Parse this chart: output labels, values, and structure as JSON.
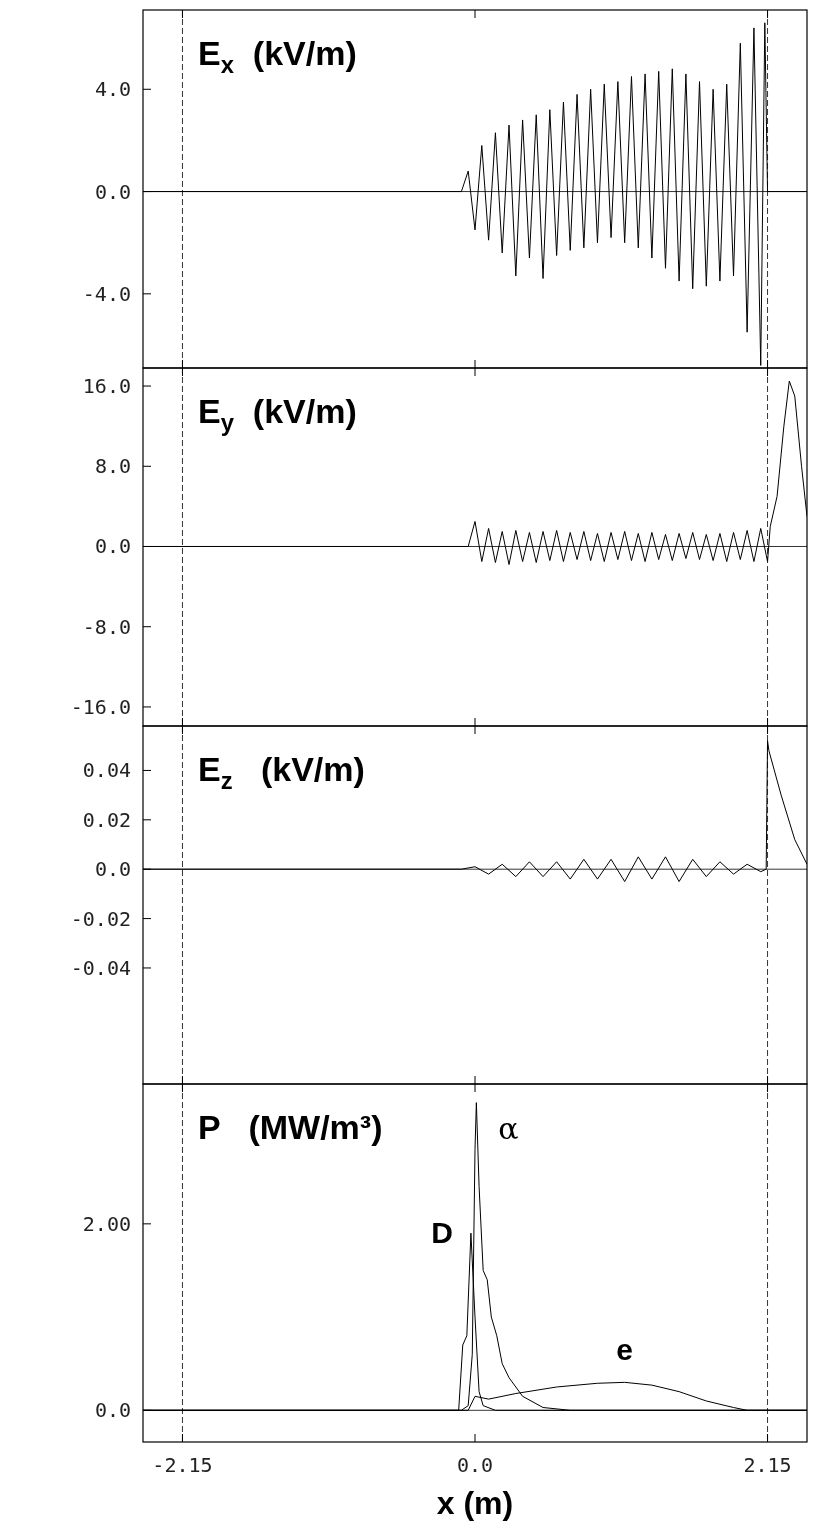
{
  "chart_data": [
    {
      "type": "line",
      "title": "E$_{x}$ (kV/m)",
      "xlim": [
        -2.44,
        2.44
      ],
      "xticks": [
        {
          "value": -2.15,
          "label": null
        },
        {
          "value": 0,
          "label": null
        },
        {
          "value": 2.15,
          "label": null
        }
      ],
      "ylim": [
        -6.9,
        7.1
      ],
      "yticks": [
        {
          "value": -4,
          "label": "-4.0"
        },
        {
          "value": 0,
          "label": "0.0"
        },
        {
          "value": 4,
          "label": "4.0"
        }
      ],
      "tick_labels": "y",
      "ref_lines": [
        {
          "axis": "x",
          "value": -2.15,
          "line_style": "dashed"
        },
        {
          "axis": "x",
          "value": 2.15,
          "line_style": "dashed"
        },
        {
          "axis": "y",
          "value": 0
        }
      ],
      "series": [
        {
          "color": "#000000",
          "x": [
            -2.44,
            -0.1,
            -0.05,
            0,
            0.05,
            0.1,
            0.15,
            0.2,
            0.25,
            0.3,
            0.35,
            0.4,
            0.45,
            0.5,
            0.55,
            0.6,
            0.65,
            0.7,
            0.75,
            0.8,
            0.85,
            0.9,
            0.95,
            1.0,
            1.05,
            1.1,
            1.15,
            1.2,
            1.25,
            1.3,
            1.35,
            1.4,
            1.45,
            1.5,
            1.55,
            1.6,
            1.65,
            1.7,
            1.75,
            1.8,
            1.85,
            1.9,
            1.95,
            2.0,
            2.05,
            2.1,
            2.13,
            2.15,
            2.44
          ],
          "values": [
            0,
            0,
            0.8,
            -1.5,
            1.8,
            -1.9,
            2.3,
            -2.4,
            2.6,
            -3.3,
            2.8,
            -2.6,
            3.0,
            -3.4,
            3.2,
            -2.5,
            3.5,
            -2.3,
            3.8,
            -2.2,
            4.0,
            -2.0,
            4.2,
            -1.8,
            4.3,
            -2.0,
            4.5,
            -2.2,
            4.6,
            -2.6,
            4.7,
            -3.0,
            4.8,
            -3.5,
            4.6,
            -3.8,
            4.3,
            -3.7,
            4.0,
            -3.5,
            4.2,
            -3.3,
            5.8,
            -5.5,
            6.4,
            -6.8,
            6.6,
            0,
            0
          ]
        }
      ]
    },
    {
      "type": "line",
      "title": "E$_{y}$ (kV/m)",
      "xlim": [
        -2.44,
        2.44
      ],
      "xticks": [
        {
          "value": -2.15,
          "label": null
        },
        {
          "value": 0,
          "label": null
        },
        {
          "value": 2.15,
          "label": null
        }
      ],
      "ylim": [
        -17.9,
        17.8
      ],
      "yticks": [
        {
          "value": -16,
          "label": "-16.0"
        },
        {
          "value": -8,
          "label": "-8.0"
        },
        {
          "value": 0,
          "label": "0.0"
        },
        {
          "value": 8,
          "label": "8.0"
        },
        {
          "value": 16,
          "label": "16.0"
        }
      ],
      "tick_labels": "y",
      "ref_lines": [
        {
          "axis": "x",
          "value": -2.15,
          "line_style": "dashed"
        },
        {
          "axis": "x",
          "value": 2.15,
          "line_style": "dashed"
        },
        {
          "axis": "y",
          "value": 0
        }
      ],
      "series": [
        {
          "color": "#000000",
          "x": [
            -2.44,
            -0.05,
            0,
            0.05,
            0.1,
            0.15,
            0.2,
            0.25,
            0.3,
            0.35,
            0.4,
            0.45,
            0.5,
            0.55,
            0.6,
            0.65,
            0.7,
            0.75,
            0.8,
            0.85,
            0.9,
            0.95,
            1.0,
            1.05,
            1.1,
            1.15,
            1.2,
            1.25,
            1.3,
            1.35,
            1.4,
            1.45,
            1.5,
            1.55,
            1.6,
            1.65,
            1.7,
            1.75,
            1.8,
            1.85,
            1.9,
            1.95,
            2.0,
            2.05,
            2.1,
            2.15,
            2.17,
            2.22,
            2.27,
            2.31,
            2.35,
            2.4,
            2.44
          ],
          "values": [
            0,
            0,
            2.5,
            -1.5,
            1.8,
            -1.6,
            1.5,
            -1.8,
            1.6,
            -1.5,
            1.4,
            -1.6,
            1.5,
            -1.4,
            1.6,
            -1.5,
            1.4,
            -1.3,
            1.5,
            -1.4,
            1.3,
            -1.5,
            1.4,
            -1.3,
            1.5,
            -1.4,
            1.3,
            -1.5,
            1.4,
            -1.3,
            1.2,
            -1.4,
            1.3,
            -1.2,
            1.4,
            -1.3,
            1.2,
            -1.4,
            1.3,
            -1.5,
            1.4,
            -1.3,
            1.6,
            -1.5,
            1.8,
            -1.5,
            2.0,
            5.0,
            12.0,
            16.5,
            15.0,
            8.0,
            3.0
          ]
        }
      ]
    },
    {
      "type": "line",
      "title": "E$_{z}$  (kV/m)",
      "xlim": [
        -2.44,
        2.44
      ],
      "xticks": [
        {
          "value": -2.15,
          "label": null
        },
        {
          "value": 0,
          "label": null
        },
        {
          "value": 2.15,
          "label": null
        }
      ],
      "ylim": [
        -0.087,
        0.058
      ],
      "yticks": [
        {
          "value": -0.04,
          "label": "-0.04"
        },
        {
          "value": -0.02,
          "label": "-0.02"
        },
        {
          "value": 0,
          "label": "0.0"
        },
        {
          "value": 0.02,
          "label": "0.02"
        },
        {
          "value": 0.04,
          "label": "0.04"
        }
      ],
      "tick_labels": "y",
      "ref_lines": [
        {
          "axis": "x",
          "value": -2.15,
          "line_style": "dashed"
        },
        {
          "axis": "x",
          "value": 2.15,
          "line_style": "dashed"
        },
        {
          "axis": "y",
          "value": 0
        }
      ],
      "series": [
        {
          "color": "#000000",
          "x": [
            -2.44,
            -0.1,
            0,
            0.1,
            0.2,
            0.3,
            0.4,
            0.5,
            0.6,
            0.7,
            0.8,
            0.9,
            1.0,
            1.1,
            1.2,
            1.3,
            1.4,
            1.5,
            1.6,
            1.7,
            1.8,
            1.9,
            2.0,
            2.1,
            2.14,
            2.15,
            2.16,
            2.25,
            2.35,
            2.44
          ],
          "values": [
            0,
            0,
            0.001,
            -0.002,
            0.002,
            -0.003,
            0.003,
            -0.003,
            0.003,
            -0.004,
            0.004,
            -0.004,
            0.004,
            -0.005,
            0.005,
            -0.004,
            0.005,
            -0.005,
            0.004,
            -0.003,
            0.003,
            -0.002,
            0.002,
            -0.001,
            0,
            0.052,
            0.048,
            0.03,
            0.012,
            0.002
          ]
        }
      ]
    },
    {
      "type": "line",
      "title": "P   (MW/m³)",
      "xlabel": "x (m)",
      "xlim": [
        -2.44,
        2.44
      ],
      "xticks": [
        {
          "value": -2.15,
          "label": "-2.15"
        },
        {
          "value": 0,
          "label": "0.0"
        },
        {
          "value": 2.15,
          "label": "2.15"
        }
      ],
      "ylim": [
        -0.34,
        3.5
      ],
      "yticks": [
        {
          "value": 0,
          "label": "0.0"
        },
        {
          "value": 2,
          "label": "2.00"
        }
      ],
      "ref_lines": [
        {
          "axis": "x",
          "value": -2.15,
          "line_style": "dashed"
        },
        {
          "axis": "x",
          "value": 2.15,
          "line_style": "dashed"
        },
        {
          "axis": "y",
          "value": 0
        }
      ],
      "series": [
        {
          "name": "D",
          "color": "#000000",
          "x": [
            -2.44,
            -0.12,
            -0.09,
            -0.06,
            -0.03,
            0.0,
            0.03,
            0.06,
            0.15,
            2.44
          ],
          "values": [
            0,
            0,
            0.7,
            0.8,
            1.9,
            1.0,
            0.2,
            0.05,
            0,
            0
          ]
        },
        {
          "name": "α",
          "color": "#000000",
          "x": [
            -2.44,
            -0.1,
            -0.05,
            -0.02,
            0.0,
            0.01,
            0.03,
            0.06,
            0.09,
            0.12,
            0.16,
            0.2,
            0.25,
            0.35,
            0.5,
            0.7,
            2.44
          ],
          "values": [
            0,
            0,
            0.05,
            0.6,
            2.8,
            3.3,
            2.4,
            1.5,
            1.4,
            1.0,
            0.8,
            0.5,
            0.35,
            0.15,
            0.03,
            0,
            0
          ]
        },
        {
          "name": "e",
          "color": "#000000",
          "x": [
            -2.44,
            -0.05,
            0.0,
            0.1,
            0.3,
            0.6,
            0.9,
            1.1,
            1.3,
            1.5,
            1.7,
            1.9,
            2.0,
            2.44
          ],
          "values": [
            0,
            0,
            0.15,
            0.12,
            0.18,
            0.25,
            0.29,
            0.3,
            0.27,
            0.2,
            0.1,
            0.03,
            0,
            0
          ]
        }
      ]
    }
  ]
}
